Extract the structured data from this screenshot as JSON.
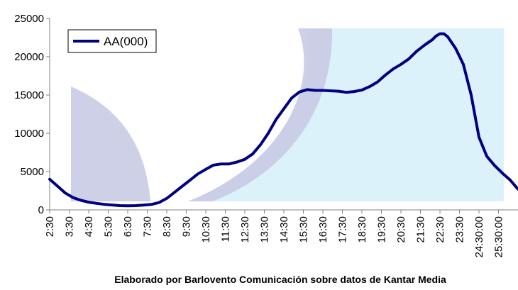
{
  "chart_data": {
    "type": "line",
    "title": "",
    "xlabel": "",
    "ylabel": "",
    "ylim": [
      0,
      25000
    ],
    "yticks": [
      0,
      5000,
      10000,
      15000,
      20000,
      25000
    ],
    "xlim": [
      2.5,
      26.5
    ],
    "xticks": [
      {
        "x": 2.5,
        "label": "2:30"
      },
      {
        "x": 3.5,
        "label": "3:30"
      },
      {
        "x": 4.5,
        "label": "4:30"
      },
      {
        "x": 5.5,
        "label": "5:30"
      },
      {
        "x": 6.5,
        "label": "6:30"
      },
      {
        "x": 7.5,
        "label": "7:30"
      },
      {
        "x": 8.5,
        "label": "8:30"
      },
      {
        "x": 9.5,
        "label": "9:30"
      },
      {
        "x": 10.5,
        "label": "10:30"
      },
      {
        "x": 11.5,
        "label": "11:30"
      },
      {
        "x": 12.5,
        "label": "12:30"
      },
      {
        "x": 13.5,
        "label": "13:30"
      },
      {
        "x": 14.5,
        "label": "14:30"
      },
      {
        "x": 15.5,
        "label": "15:30"
      },
      {
        "x": 16.5,
        "label": "16:30"
      },
      {
        "x": 17.5,
        "label": "17:30"
      },
      {
        "x": 18.5,
        "label": "18:30"
      },
      {
        "x": 19.5,
        "label": "19:30"
      },
      {
        "x": 20.5,
        "label": "20:30"
      },
      {
        "x": 21.5,
        "label": "21:30"
      },
      {
        "x": 22.5,
        "label": "22:30"
      },
      {
        "x": 23.5,
        "label": "23:30"
      },
      {
        "x": 24.5,
        "label": "24:30:00"
      },
      {
        "x": 25.5,
        "label": "25:30:00"
      }
    ],
    "legend_position": "top-left",
    "series": [
      {
        "name": "AA(000)",
        "color": "#000080",
        "x": [
          2.5,
          2.9,
          3.3,
          3.7,
          4.1,
          4.5,
          4.9,
          5.3,
          5.7,
          6.1,
          6.5,
          6.9,
          7.3,
          7.7,
          8.1,
          8.5,
          8.9,
          9.3,
          9.7,
          10.1,
          10.5,
          10.9,
          11.3,
          11.7,
          12.1,
          12.5,
          12.9,
          13.3,
          13.7,
          14.1,
          14.5,
          14.9,
          15.3,
          15.7,
          16.1,
          16.5,
          16.9,
          17.3,
          17.7,
          18.1,
          18.5,
          18.9,
          19.3,
          19.7,
          20.1,
          20.5,
          20.9,
          21.3,
          21.7,
          22.1,
          22.3,
          22.5,
          22.7,
          22.9,
          23.3,
          23.7,
          24.1,
          24.5,
          24.9,
          25.3,
          25.7,
          26.1,
          26.5
        ],
        "values": [
          4000,
          3100,
          2200,
          1600,
          1250,
          1000,
          850,
          720,
          640,
          560,
          530,
          560,
          620,
          700,
          950,
          1500,
          2300,
          3100,
          3900,
          4700,
          5300,
          5850,
          6000,
          6000,
          6250,
          6600,
          7300,
          8500,
          10000,
          11800,
          13200,
          14600,
          15400,
          15700,
          15600,
          15600,
          15550,
          15500,
          15350,
          15450,
          15650,
          16100,
          16700,
          17600,
          18400,
          19000,
          19700,
          20700,
          21500,
          22200,
          22700,
          23000,
          23000,
          22600,
          21100,
          19000,
          15000,
          9500,
          7000,
          5800,
          4800,
          3900,
          2700
        ]
      }
    ]
  },
  "caption": "Elaborado por Barlovento Comunicación sobre datos de Kantar Media",
  "colors": {
    "plot_bg": "#ffffff",
    "decor_fill": "#d6f0fa",
    "decor_band": "#c8cbe4"
  }
}
